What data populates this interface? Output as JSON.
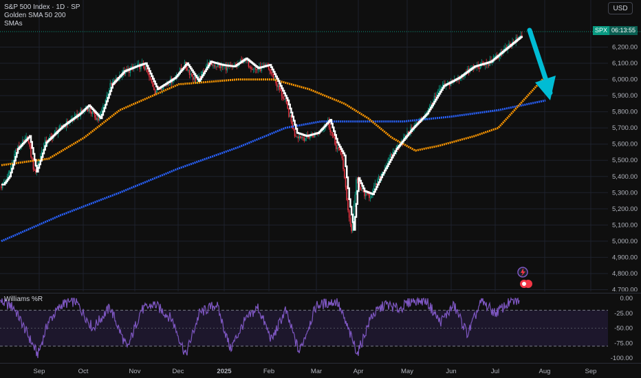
{
  "legend": {
    "title": "S&P 500 Index · 1D · SP",
    "indicator": "Golden SMA 50 200",
    "sma_label": "SMAs",
    "wr_label": "Williams %R"
  },
  "currency": "USD",
  "price_tag": {
    "symbol": "SPX",
    "countdown": "06:13:55"
  },
  "colors": {
    "background": "#0f0f0f",
    "up_candle": "#089981",
    "down_candle": "#f23645",
    "sma50": "#ff9800",
    "sma200": "#2962ff",
    "fast_line": "#ffffff",
    "arrow": "#00bcd4",
    "williams": "#7e57c2",
    "wr_band": "#2a1f45",
    "grid": "#1e222d"
  },
  "icons": {
    "lightning": "lightning-icon",
    "flag": "us-flag-icon"
  },
  "chart_data": [
    {
      "type": "candlestick",
      "title": "S&P 500 Index · 1D · SP",
      "y_ticks": [
        4700,
        4800,
        4900,
        5000,
        5100,
        5200,
        5300,
        5400,
        5500,
        5600,
        5700,
        5800,
        5900,
        6000,
        6100,
        6200
      ],
      "ylim": [
        4680,
        6340
      ],
      "x_ticks": [
        "Sep",
        "Oct",
        "Nov",
        "Dec",
        "2025",
        "Feb",
        "Mar",
        "Apr",
        "May",
        "Jun",
        "Jul",
        "Aug",
        "Sep"
      ],
      "grid": true,
      "close_keypoints": [
        [
          0,
          5340
        ],
        [
          5,
          5390
        ],
        [
          12,
          5560
        ],
        [
          22,
          5640
        ],
        [
          28,
          5420
        ],
        [
          36,
          5600
        ],
        [
          50,
          5700
        ],
        [
          65,
          5780
        ],
        [
          72,
          5830
        ],
        [
          82,
          5750
        ],
        [
          92,
          5960
        ],
        [
          102,
          6040
        ],
        [
          112,
          6070
        ],
        [
          120,
          6090
        ],
        [
          130,
          5930
        ],
        [
          145,
          6000
        ],
        [
          155,
          6090
        ],
        [
          165,
          5980
        ],
        [
          175,
          6100
        ],
        [
          185,
          6080
        ],
        [
          195,
          6070
        ],
        [
          205,
          6120
        ],
        [
          215,
          6060
        ],
        [
          225,
          6080
        ],
        [
          232,
          5980
        ],
        [
          240,
          5860
        ],
        [
          248,
          5660
        ],
        [
          256,
          5640
        ],
        [
          266,
          5660
        ],
        [
          276,
          5740
        ],
        [
          282,
          5600
        ],
        [
          288,
          5520
        ],
        [
          292,
          5250
        ],
        [
          296,
          5060
        ],
        [
          300,
          5380
        ],
        [
          305,
          5300
        ],
        [
          312,
          5280
        ],
        [
          320,
          5400
        ],
        [
          332,
          5560
        ],
        [
          345,
          5680
        ],
        [
          358,
          5780
        ],
        [
          372,
          5950
        ],
        [
          385,
          6000
        ],
        [
          398,
          6070
        ],
        [
          412,
          6100
        ],
        [
          420,
          6150
        ],
        [
          430,
          6210
        ],
        [
          440,
          6270
        ]
      ],
      "series": [
        {
          "name": "SMA 50",
          "values": [
            [
              0,
              5470
            ],
            [
              40,
              5510
            ],
            [
              70,
              5640
            ],
            [
              100,
              5810
            ],
            [
              150,
              5970
            ],
            [
              200,
              6000
            ],
            [
              230,
              6000
            ],
            [
              260,
              5940
            ],
            [
              290,
              5850
            ],
            [
              310,
              5760
            ],
            [
              330,
              5640
            ],
            [
              350,
              5560
            ],
            [
              370,
              5590
            ],
            [
              400,
              5650
            ],
            [
              420,
              5700
            ],
            [
              440,
              5860
            ],
            [
              460,
              6020
            ]
          ]
        },
        {
          "name": "SMA 200",
          "values": [
            [
              0,
              5000
            ],
            [
              50,
              5160
            ],
            [
              100,
              5300
            ],
            [
              150,
              5450
            ],
            [
              200,
              5580
            ],
            [
              240,
              5700
            ],
            [
              270,
              5740
            ],
            [
              300,
              5740
            ],
            [
              340,
              5740
            ],
            [
              380,
              5770
            ],
            [
              420,
              5810
            ],
            [
              460,
              5870
            ]
          ]
        }
      ]
    },
    {
      "type": "line",
      "title": "Williams %R",
      "y_ticks": [
        0,
        -25,
        -50,
        -75,
        -100
      ],
      "ylim": [
        -100,
        0
      ],
      "levels": [
        -20,
        -80
      ],
      "series": [
        {
          "name": "Williams %R",
          "keypoints": [
            [
              0,
              -5
            ],
            [
              20,
              -15
            ],
            [
              40,
              -60
            ],
            [
              55,
              -95
            ],
            [
              70,
              -40
            ],
            [
              90,
              -10
            ],
            [
              110,
              -5
            ],
            [
              135,
              -50
            ],
            [
              160,
              -15
            ],
            [
              185,
              -85
            ],
            [
              205,
              -20
            ],
            [
              225,
              -10
            ],
            [
              250,
              -35
            ],
            [
              270,
              -95
            ],
            [
              290,
              -25
            ],
            [
              315,
              -10
            ],
            [
              335,
              -85
            ],
            [
              355,
              -40
            ],
            [
              375,
              -15
            ],
            [
              395,
              -70
            ],
            [
              415,
              -20
            ],
            [
              435,
              -90
            ],
            [
              460,
              -12
            ],
            [
              490,
              -5
            ],
            [
              520,
              -92
            ],
            [
              540,
              -30
            ],
            [
              560,
              -10
            ],
            [
              580,
              -18
            ],
            [
              600,
              -3
            ],
            [
              620,
              -4
            ],
            [
              640,
              -40
            ],
            [
              660,
              -12
            ],
            [
              680,
              -60
            ],
            [
              700,
              -5
            ],
            [
              720,
              -25
            ],
            [
              740,
              -8
            ],
            [
              755,
              -3
            ]
          ]
        }
      ]
    }
  ]
}
